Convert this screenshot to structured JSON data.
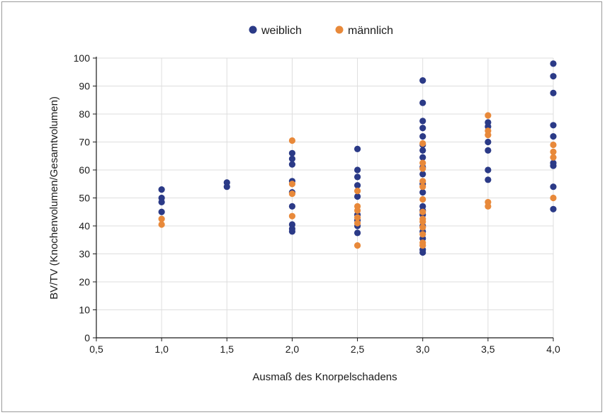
{
  "chart_data": {
    "type": "scatter",
    "xlabel": "Ausmaß des Knorpelschadens",
    "ylabel": "BV/TV (Knochenvolumen/Gesamtvolumen)",
    "xlim": [
      0.5,
      4.0
    ],
    "ylim": [
      0,
      100
    ],
    "x_ticks": [
      0.5,
      1.0,
      1.5,
      2.0,
      2.5,
      3.0,
      3.5,
      4.0
    ],
    "x_tick_labels": [
      "0,5",
      "1,0",
      "1,5",
      "2,0",
      "2,5",
      "3,0",
      "3,5",
      "4,0"
    ],
    "y_ticks": [
      0,
      10,
      20,
      30,
      40,
      50,
      60,
      70,
      80,
      90,
      100
    ],
    "y_tick_labels": [
      "0",
      "10",
      "20",
      "30",
      "40",
      "50",
      "60",
      "70",
      "80",
      "90",
      "100"
    ],
    "grid": true,
    "legend_position": "top-center",
    "series": [
      {
        "name": "weiblich",
        "color": "#2b3a87",
        "points": [
          [
            1.0,
            53
          ],
          [
            1.0,
            50
          ],
          [
            1.0,
            48.5
          ],
          [
            1.0,
            45
          ],
          [
            1.5,
            55.5
          ],
          [
            1.5,
            54
          ],
          [
            2.0,
            66
          ],
          [
            2.0,
            64
          ],
          [
            2.0,
            62
          ],
          [
            2.0,
            56
          ],
          [
            2.0,
            52
          ],
          [
            2.0,
            47
          ],
          [
            2.0,
            40.5
          ],
          [
            2.0,
            39
          ],
          [
            2.0,
            38
          ],
          [
            2.5,
            67.5
          ],
          [
            2.5,
            60
          ],
          [
            2.5,
            57.5
          ],
          [
            2.5,
            54.5
          ],
          [
            2.5,
            50.5
          ],
          [
            2.5,
            44
          ],
          [
            2.5,
            42
          ],
          [
            2.5,
            40
          ],
          [
            2.5,
            37.5
          ],
          [
            3.0,
            92
          ],
          [
            3.0,
            84
          ],
          [
            3.0,
            77.5
          ],
          [
            3.0,
            75
          ],
          [
            3.0,
            72
          ],
          [
            3.0,
            69
          ],
          [
            3.0,
            67
          ],
          [
            3.0,
            64.5
          ],
          [
            3.0,
            61
          ],
          [
            3.0,
            58.5
          ],
          [
            3.0,
            55
          ],
          [
            3.0,
            52
          ],
          [
            3.0,
            47
          ],
          [
            3.0,
            45.5
          ],
          [
            3.0,
            44
          ],
          [
            3.0,
            40
          ],
          [
            3.0,
            38
          ],
          [
            3.0,
            35.5
          ],
          [
            3.0,
            31.5
          ],
          [
            3.0,
            30.5
          ],
          [
            3.5,
            77
          ],
          [
            3.5,
            75.5
          ],
          [
            3.5,
            70
          ],
          [
            3.5,
            67
          ],
          [
            3.5,
            60
          ],
          [
            3.5,
            56.5
          ],
          [
            4.0,
            98
          ],
          [
            4.0,
            93.5
          ],
          [
            4.0,
            87.5
          ],
          [
            4.0,
            76
          ],
          [
            4.0,
            72
          ],
          [
            4.0,
            62.5
          ],
          [
            4.0,
            61.5
          ],
          [
            4.0,
            54
          ],
          [
            4.0,
            46
          ]
        ]
      },
      {
        "name": "männlich",
        "color": "#e8893a",
        "points": [
          [
            1.0,
            42.5
          ],
          [
            1.0,
            40.5
          ],
          [
            2.0,
            70.5
          ],
          [
            2.0,
            55
          ],
          [
            2.0,
            51.5
          ],
          [
            2.0,
            43.5
          ],
          [
            2.5,
            52.5
          ],
          [
            2.5,
            47
          ],
          [
            2.5,
            45.5
          ],
          [
            2.5,
            43
          ],
          [
            2.5,
            41
          ],
          [
            2.5,
            33
          ],
          [
            3.0,
            69.5
          ],
          [
            3.0,
            62.5
          ],
          [
            3.0,
            60.5
          ],
          [
            3.0,
            56
          ],
          [
            3.0,
            54
          ],
          [
            3.0,
            49.5
          ],
          [
            3.0,
            45
          ],
          [
            3.0,
            42.5
          ],
          [
            3.0,
            41.5
          ],
          [
            3.0,
            39.5
          ],
          [
            3.0,
            37
          ],
          [
            3.0,
            34
          ],
          [
            3.0,
            33
          ],
          [
            3.5,
            79.5
          ],
          [
            3.5,
            74
          ],
          [
            3.5,
            72.5
          ],
          [
            3.5,
            48.5
          ],
          [
            3.5,
            47
          ],
          [
            4.0,
            69
          ],
          [
            4.0,
            66.5
          ],
          [
            4.0,
            64.5
          ],
          [
            4.0,
            50
          ]
        ]
      }
    ]
  }
}
